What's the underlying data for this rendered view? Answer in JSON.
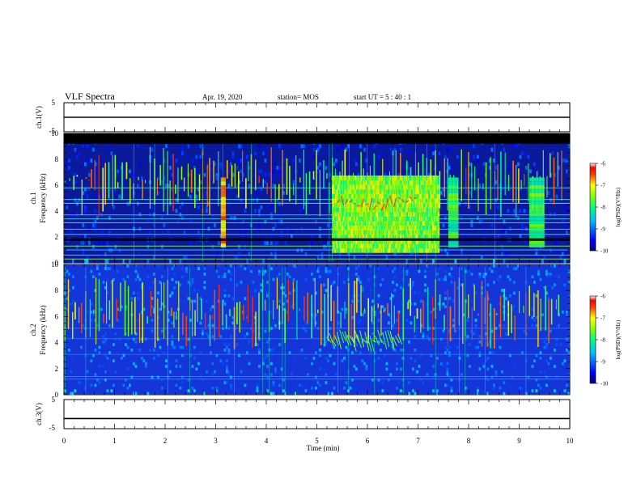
{
  "header": {
    "title": "VLF Spectra",
    "date": "Apr. 19, 2020",
    "station": "station= MOS",
    "start": "start UT =  5 : 40 : 1"
  },
  "chart_data": [
    {
      "type": "line",
      "panel": "ch1-waveform",
      "ylabel": "ch.1(V)",
      "ylim": [
        -5,
        5
      ],
      "yticks": [
        "5",
        "-5"
      ],
      "series": [
        {
          "x": [
            0,
            10
          ],
          "y": [
            0,
            0
          ],
          "color": "#000000"
        }
      ]
    },
    {
      "type": "heatmap",
      "panel": "ch1-spectrogram",
      "ylabel": "ch.1\nFrequency (kHz)",
      "ylim": [
        0,
        10
      ],
      "yticks": [
        "0",
        "2",
        "4",
        "6",
        "8",
        "10"
      ],
      "colorbar": {
        "label": "log(PSD)(V²/Hz)",
        "range": [
          -10,
          -6
        ],
        "ticks": [
          "-6",
          "-7",
          "-8",
          "-9",
          "-10"
        ]
      },
      "features": {
        "saturated_band_above_kHz": 9.2,
        "broadband_bursts_min": [
          5.3,
          7.4
        ],
        "tone_bursts_min": [
          [
            3.1,
            3.2
          ],
          [
            7.6,
            7.8
          ],
          [
            9.2,
            9.5
          ]
        ]
      }
    },
    {
      "type": "heatmap",
      "panel": "ch2-spectrogram",
      "ylabel": "ch.2\nFrequency (kHz)",
      "ylim": [
        0,
        10
      ],
      "yticks": [
        "0",
        "2",
        "4",
        "6",
        "8",
        "10"
      ],
      "colorbar": {
        "label": "log(PSD)(V²/Hz)",
        "range": [
          -10,
          -6
        ],
        "ticks": [
          "-6",
          "-7",
          "-8",
          "-9",
          "-10"
        ]
      }
    },
    {
      "type": "line",
      "panel": "ch3-waveform",
      "ylabel": "ch.3(V)",
      "ylim": [
        -5,
        5
      ],
      "yticks": [
        "5",
        "-5"
      ],
      "xlabel": "Time (min)",
      "xlim": [
        0,
        10
      ],
      "xticks": [
        "0",
        "1",
        "2",
        "3",
        "4",
        "5",
        "6",
        "7",
        "8",
        "9",
        "10"
      ],
      "series": [
        {
          "x": [
            0,
            10
          ],
          "y": [
            -1.5,
            -1.5
          ],
          "color": "#000000"
        }
      ]
    }
  ]
}
